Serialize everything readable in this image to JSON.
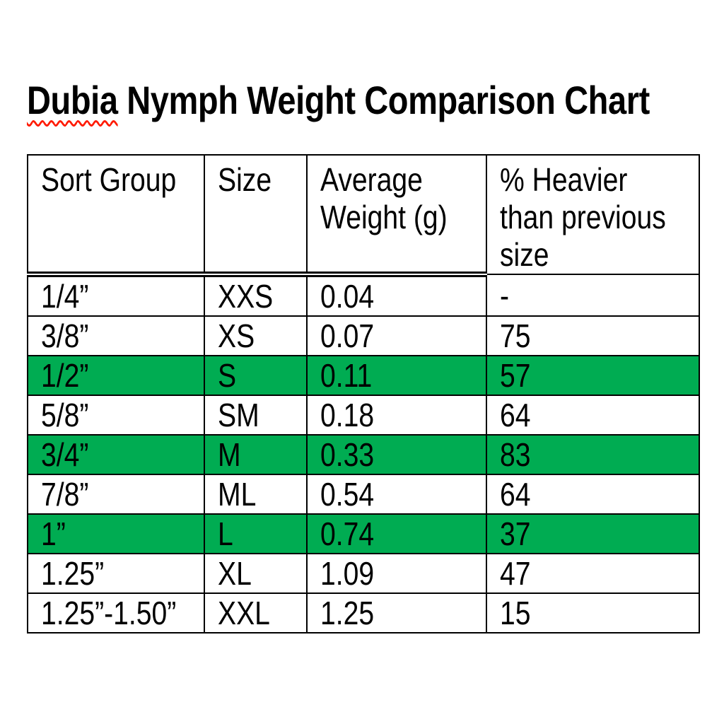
{
  "title": {
    "first_word": "Dubia",
    "rest": " Nymph Weight Comparison Chart",
    "spellcheck_underline_color": "#ff1a00"
  },
  "table": {
    "highlight_color": "#00AC52",
    "headers": [
      {
        "label": "Sort Group",
        "lines": [
          "Sort Group"
        ]
      },
      {
        "label": "Size",
        "lines": [
          "Size"
        ]
      },
      {
        "label": "Average Weight (g)",
        "lines": [
          "Average",
          "Weight (g)"
        ]
      },
      {
        "label": "% Heavier than previous size",
        "lines": [
          "% Heavier",
          "than previous",
          "size"
        ]
      }
    ],
    "rows": [
      {
        "sort_group": "1/4”",
        "size": "XXS",
        "avg_weight": "0.04",
        "pct_heavier": "-",
        "highlighted": false
      },
      {
        "sort_group": "3/8”",
        "size": "XS",
        "avg_weight": "0.07",
        "pct_heavier": "75",
        "highlighted": false
      },
      {
        "sort_group": "1/2”",
        "size": "S",
        "avg_weight": "0.11",
        "pct_heavier": "57",
        "highlighted": true
      },
      {
        "sort_group": "5/8”",
        "size": "SM",
        "avg_weight": "0.18",
        "pct_heavier": "64",
        "highlighted": false
      },
      {
        "sort_group": "3/4”",
        "size": "M",
        "avg_weight": "0.33",
        "pct_heavier": "83",
        "highlighted": true
      },
      {
        "sort_group": "7/8”",
        "size": "ML",
        "avg_weight": "0.54",
        "pct_heavier": "64",
        "highlighted": false
      },
      {
        "sort_group": "1”",
        "size": "L",
        "avg_weight": "0.74",
        "pct_heavier": "37",
        "highlighted": true
      },
      {
        "sort_group": "1.25”",
        "size": "XL",
        "avg_weight": "1.09",
        "pct_heavier": "47",
        "highlighted": false
      },
      {
        "sort_group": "1.25”-1.50”",
        "size": "XXL",
        "avg_weight": "1.25",
        "pct_heavier": "15",
        "highlighted": false
      }
    ]
  }
}
